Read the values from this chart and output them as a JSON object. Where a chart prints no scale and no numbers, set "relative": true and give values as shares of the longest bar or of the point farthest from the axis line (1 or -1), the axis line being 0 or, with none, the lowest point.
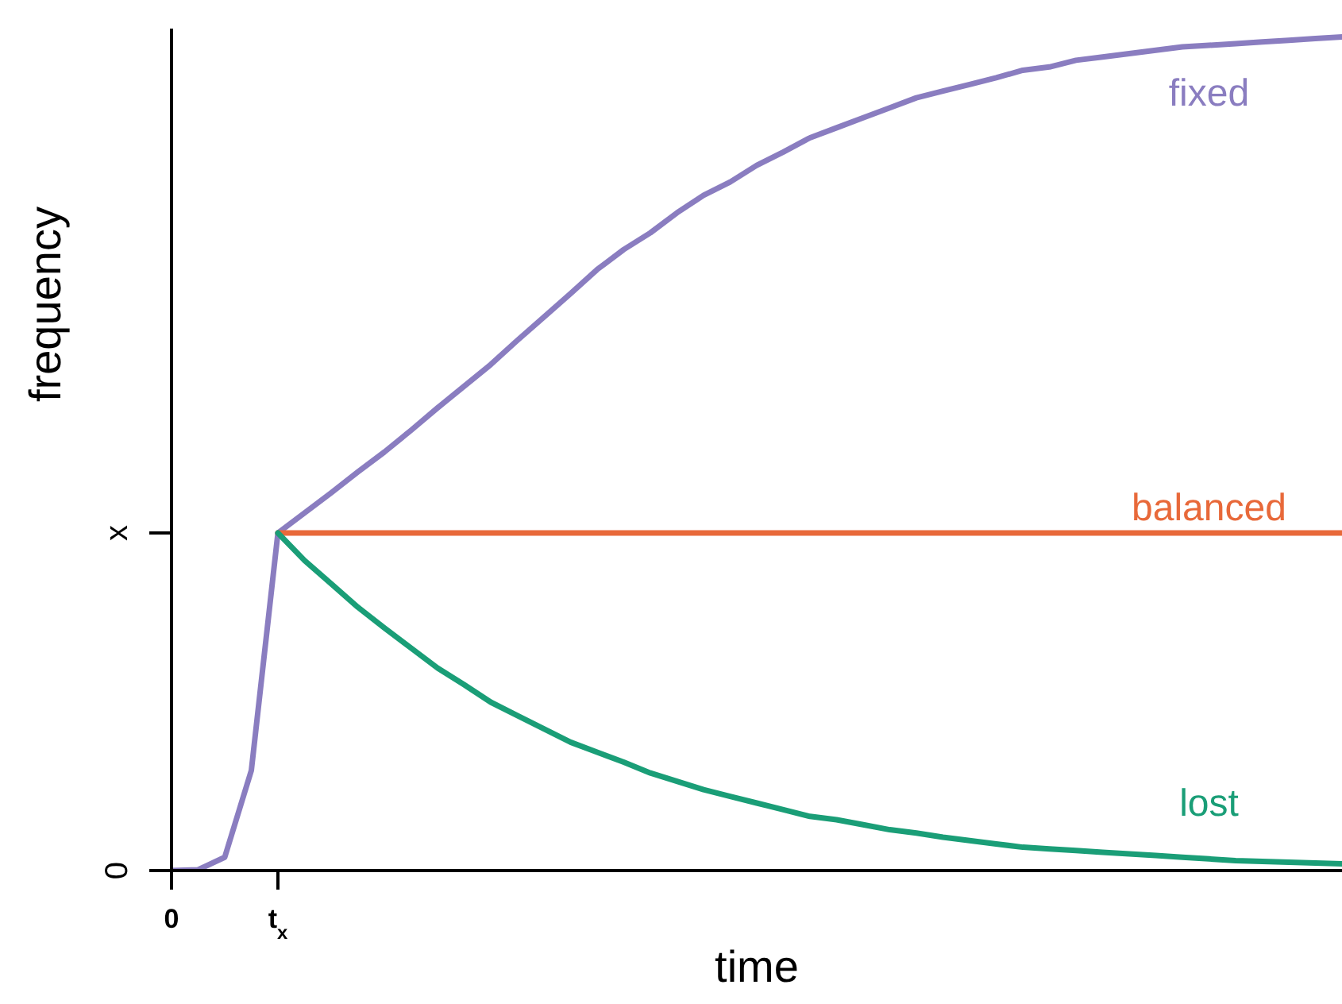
{
  "chart_data": {
    "type": "line",
    "xlabel": "time",
    "ylabel": "frequency",
    "relative": true,
    "categories": [
      "0",
      null,
      null,
      null,
      "t$_{x}$",
      null,
      null,
      null,
      null,
      null,
      null,
      null,
      null,
      null,
      null,
      null,
      null,
      null,
      null,
      null,
      null,
      null,
      null,
      null,
      null,
      null,
      null,
      null,
      null,
      null,
      null,
      null,
      null,
      null,
      null,
      null,
      null,
      null,
      null,
      null,
      null,
      null,
      null,
      null,
      null
    ],
    "series": [
      {
        "name": "fixed",
        "color": "#8a7dc0",
        "values": [
          0,
          0.001,
          0.016,
          0.12,
          0.405,
          0.429,
          0.453,
          0.478,
          0.502,
          0.528,
          0.555,
          0.581,
          0.607,
          0.636,
          0.664,
          0.692,
          0.721,
          0.745,
          0.765,
          0.789,
          0.81,
          0.826,
          0.846,
          0.862,
          0.879,
          0.891,
          0.903,
          0.915,
          0.927,
          0.935,
          0.943,
          0.951,
          0.96,
          0.964,
          0.972,
          0.976,
          0.98,
          0.984,
          0.988,
          0.99,
          0.992,
          0.994,
          0.996,
          0.998,
          1
        ]
      },
      {
        "name": "balanced",
        "color": "#e8693a",
        "values": [
          null,
          null,
          null,
          null,
          0.405,
          0.405,
          0.405,
          0.405,
          0.405,
          0.405,
          0.405,
          0.405,
          0.405,
          0.405,
          0.405,
          0.405,
          0.405,
          0.405,
          0.405,
          0.405,
          0.405,
          0.405,
          0.405,
          0.405,
          0.405,
          0.405,
          0.405,
          0.405,
          0.405,
          0.405,
          0.405,
          0.405,
          0.405,
          0.405,
          0.405,
          0.405,
          0.405,
          0.405,
          0.405,
          0.405,
          0.405,
          0.405,
          0.405,
          0.405,
          0.405
        ]
      },
      {
        "name": "lost",
        "color": "#1a9e77",
        "values": [
          null,
          null,
          null,
          null,
          0.405,
          0.372,
          0.344,
          0.316,
          0.291,
          0.267,
          0.243,
          0.223,
          0.202,
          0.186,
          0.17,
          0.154,
          0.142,
          0.13,
          0.117,
          0.107,
          0.097,
          0.089,
          0.081,
          0.073,
          0.065,
          0.061,
          0.055,
          0.049,
          0.045,
          0.04,
          0.036,
          0.032,
          0.028,
          0.026,
          0.024,
          0.022,
          0.02,
          0.018,
          0.016,
          0.014,
          0.012,
          0.011,
          0.01,
          0.009,
          0.008
        ]
      }
    ],
    "annotations": [
      "0",
      "x"
    ],
    "grid": false,
    "marker": "none",
    "line_style": "solid"
  }
}
